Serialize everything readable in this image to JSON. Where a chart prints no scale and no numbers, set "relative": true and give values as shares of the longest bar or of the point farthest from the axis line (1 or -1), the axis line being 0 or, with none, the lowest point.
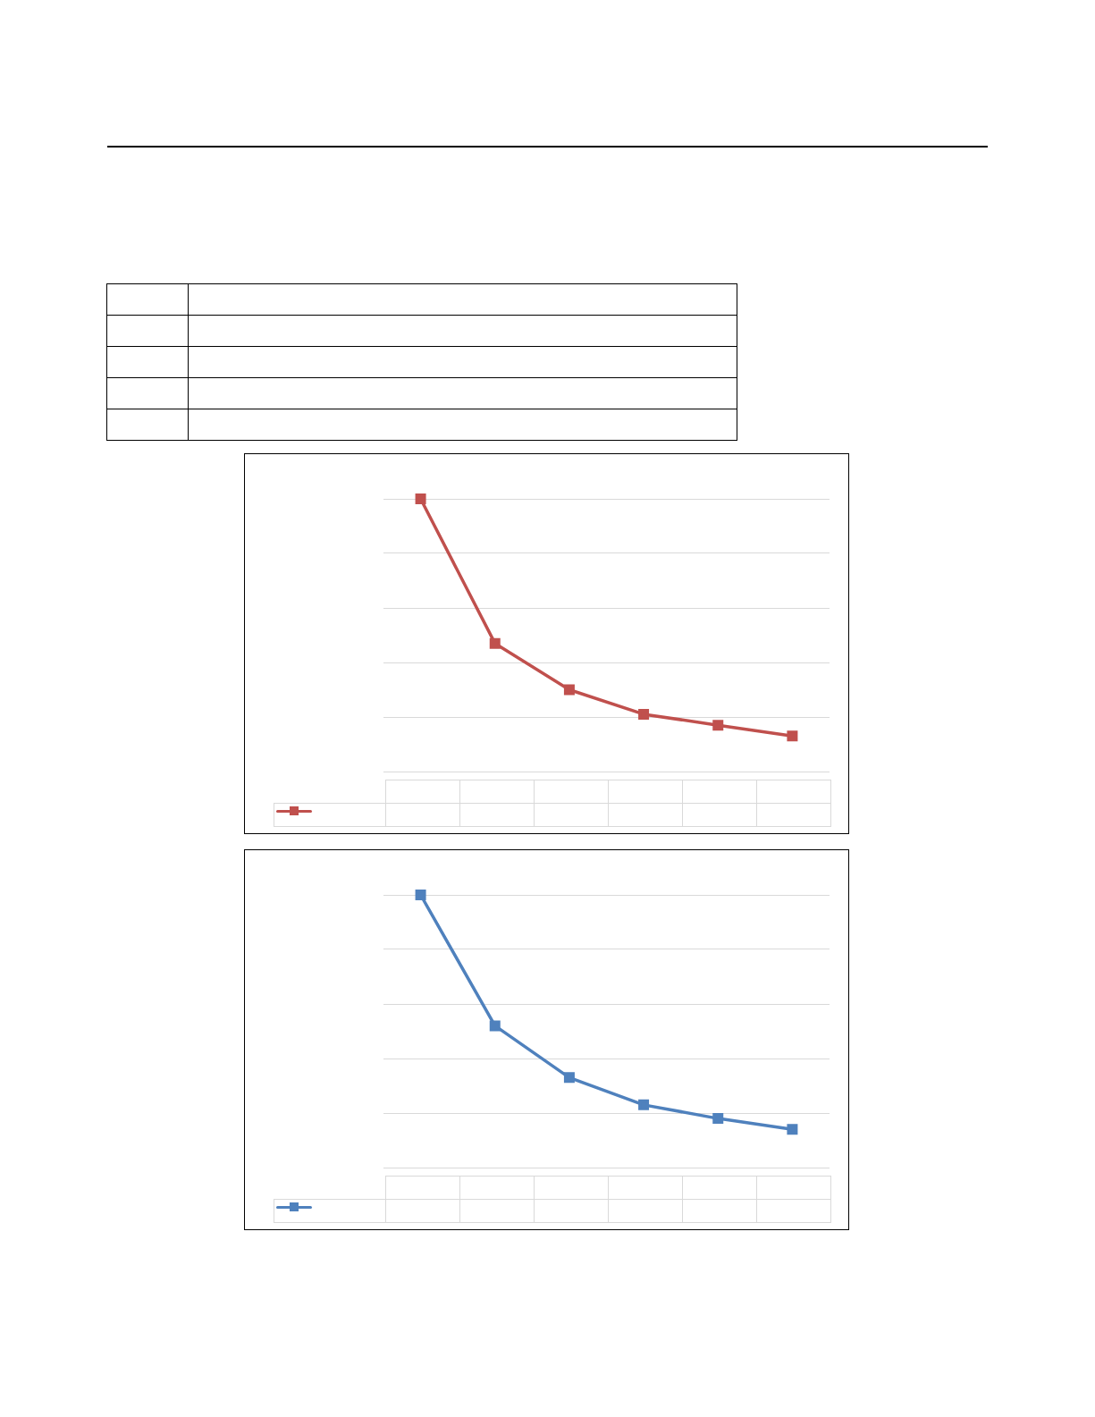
{
  "chart_data": [
    {
      "type": "line",
      "relative": true,
      "categories": [
        null,
        null,
        null,
        null,
        null,
        null
      ],
      "grid": "y",
      "marker": "square",
      "line_style": "solid",
      "series": [
        {
          "color": "#c0504d",
          "values": [
            1,
            0.47,
            0.3,
            0.21,
            0.17,
            0.13
          ]
        }
      ]
    },
    {
      "type": "line",
      "relative": true,
      "categories": [
        null,
        null,
        null,
        null,
        null,
        null
      ],
      "grid": "y",
      "marker": "square",
      "line_style": "solid",
      "series": [
        {
          "color": "#4f81bd",
          "values": [
            1,
            0.52,
            0.33,
            0.23,
            0.18,
            0.14
          ]
        }
      ]
    }
  ]
}
